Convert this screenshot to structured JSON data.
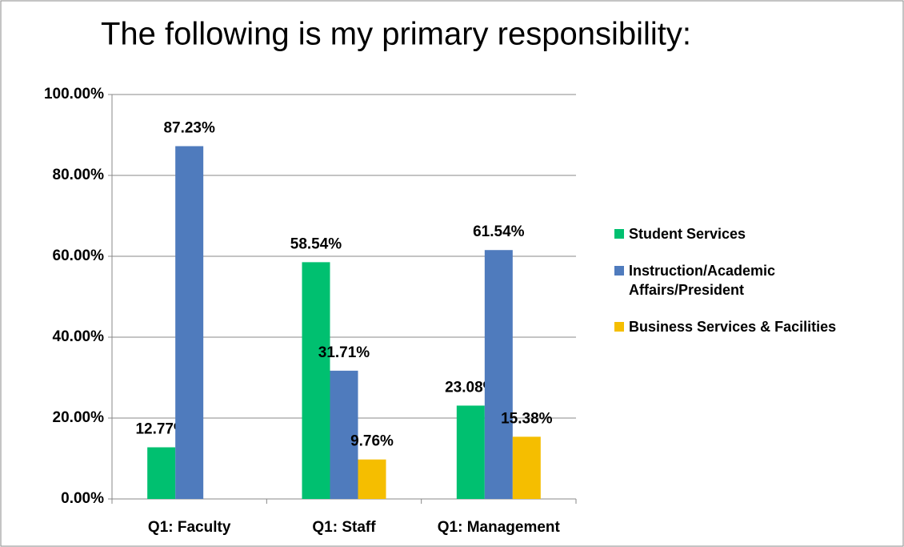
{
  "chart_data": {
    "type": "bar",
    "title": "The following is my primary responsibility:",
    "categories": [
      "Q1: Faculty",
      "Q1: Staff",
      "Q1: Management"
    ],
    "series": [
      {
        "name": "Student Services",
        "color": "#00c070",
        "values": [
          12.77,
          58.54,
          23.08
        ],
        "value_labels": [
          "12.77%",
          "58.54%",
          "23.08%"
        ]
      },
      {
        "name": "Instruction/Academic Affairs/President",
        "color": "#4f7bbd",
        "values": [
          87.23,
          31.71,
          61.54
        ],
        "value_labels": [
          "87.23%",
          "31.71%",
          "61.54%"
        ]
      },
      {
        "name": "Business Services & Facilities",
        "color": "#f5be00",
        "values": [
          null,
          9.76,
          15.38
        ],
        "value_labels": [
          null,
          "9.76%",
          "15.38%"
        ]
      }
    ],
    "ylim": [
      0,
      100
    ],
    "yticks": [
      {
        "value": 0,
        "label": "0.00%"
      },
      {
        "value": 20,
        "label": "20.00%"
      },
      {
        "value": 40,
        "label": "40.00%"
      },
      {
        "value": 60,
        "label": "60.00%"
      },
      {
        "value": 80,
        "label": "80.00%"
      },
      {
        "value": 100,
        "label": "100.00%"
      }
    ],
    "grid": true,
    "legend": "right"
  }
}
